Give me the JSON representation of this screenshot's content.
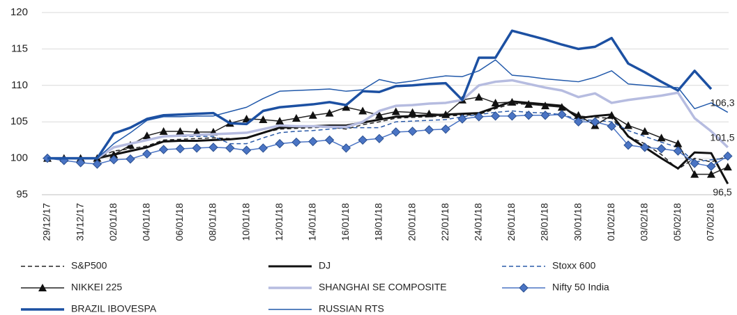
{
  "chart_data": {
    "type": "line",
    "categories": [
      "29/12/17",
      null,
      "31/12/17",
      null,
      "02/01/18",
      null,
      "04/01/18",
      null,
      "06/01/18",
      null,
      "08/01/18",
      null,
      "10/01/18",
      null,
      "12/01/18",
      null,
      "14/01/18",
      null,
      "16/01/18",
      null,
      "18/01/18",
      null,
      "20/01/18",
      null,
      "22/01/18",
      null,
      "24/01/18",
      null,
      "26/01/18",
      null,
      "28/01/18",
      null,
      "30/01/18",
      null,
      "01/02/18",
      null,
      "03/02/18",
      null,
      "05/02/18",
      null,
      "07/02/18",
      null
    ],
    "ylim": [
      95,
      120
    ],
    "yticks": [
      95,
      100,
      105,
      110,
      115,
      120
    ],
    "grid": true,
    "legend": "bottom",
    "series": [
      {
        "name": "S&P500",
        "color": "#222222",
        "width": 1.5,
        "dash": true,
        "values": [
          100,
          100,
          100,
          100,
          101,
          101.3,
          101.7,
          102.5,
          102.6,
          102.7,
          102.8,
          102.7,
          102.7,
          103.5,
          104,
          104.1,
          104.2,
          104.3,
          104,
          104.6,
          105,
          105.5,
          105.6,
          105.7,
          105.8,
          105.9,
          106,
          106.8,
          107.5,
          107.4,
          107.3,
          107,
          105.8,
          105.6,
          105.5,
          103,
          102,
          100.5,
          98.5,
          100,
          99.5,
          100.3
        ]
      },
      {
        "name": "DJ",
        "color": "#111111",
        "width": 3,
        "values": [
          100,
          100,
          100,
          100,
          100.5,
          101,
          101.5,
          102.3,
          102.4,
          102.4,
          102.5,
          102.6,
          102.8,
          103.5,
          104.2,
          104.3,
          104.4,
          104.5,
          104.5,
          104.9,
          105.3,
          105.7,
          105.8,
          105.9,
          106,
          106.1,
          106.2,
          107,
          107.8,
          107.6,
          107.4,
          107.2,
          105.5,
          105.8,
          106,
          103,
          101.5,
          100,
          98.6,
          100.8,
          100.7,
          96.5
        ]
      },
      {
        "name": "Stoxx 600",
        "color": "#2a5aa8",
        "width": 1.5,
        "dash": true,
        "values": [
          100,
          100,
          100,
          100,
          101.5,
          102,
          102.5,
          103,
          103,
          103,
          103,
          102,
          102,
          102.8,
          103.5,
          103.7,
          103.8,
          104,
          104.2,
          104.2,
          104.2,
          105,
          105.1,
          105.2,
          105.3,
          105.7,
          106,
          106.3,
          106.5,
          106.3,
          106.2,
          106,
          105.3,
          105.2,
          105,
          103.8,
          103,
          102.2,
          101.5,
          99.5,
          99.8,
          100
        ]
      },
      {
        "name": "NIKKEI 225",
        "color": "#222222",
        "width": 1.5,
        "marker": "triangle",
        "values": [
          100,
          100,
          100,
          100,
          100.5,
          101.8,
          103.1,
          103.7,
          103.7,
          103.6,
          103.6,
          104.8,
          105.4,
          105.3,
          105.1,
          105.5,
          105.9,
          106.2,
          107,
          106.5,
          105.9,
          106.4,
          106.3,
          106.1,
          106,
          108,
          108.4,
          107.6,
          107.7,
          107.4,
          107.2,
          107,
          105.9,
          104.5,
          105.9,
          104.5,
          103.7,
          102.8,
          102,
          97.8,
          97.8,
          98.8
        ]
      },
      {
        "name": "SHANGHAI SE COMPOSITE",
        "color": "#b6bce0",
        "width": 3.5,
        "values": [
          100,
          100,
          100,
          100,
          101.5,
          102,
          102.5,
          103,
          103.1,
          103.2,
          103.3,
          103.4,
          103.5,
          104,
          104.5,
          104.4,
          104.4,
          104.3,
          104.3,
          105,
          106.5,
          107.2,
          107.3,
          107.5,
          107.6,
          108,
          110,
          110.5,
          110.7,
          110.2,
          109.7,
          109.3,
          108.4,
          108.9,
          107.6,
          108,
          108.3,
          108.6,
          109,
          105.5,
          103.7,
          101.5
        ]
      },
      {
        "name": "Nifty 50 India",
        "color": "#4a74c4",
        "width": 1.5,
        "marker": "diamond",
        "values": [
          100,
          99.7,
          99.4,
          99.2,
          99.8,
          99.9,
          100.6,
          101.2,
          101.3,
          101.4,
          101.5,
          101.4,
          101.1,
          101.4,
          102,
          102.2,
          102.3,
          102.5,
          101.4,
          102.5,
          102.7,
          103.6,
          103.7,
          103.9,
          104,
          105.4,
          105.7,
          105.8,
          105.8,
          105.9,
          105.9,
          106,
          105,
          105,
          104.4,
          101.8,
          101.5,
          101.3,
          101,
          99.3,
          98.9,
          100.3
        ]
      },
      {
        "name": "BRAZIL IBOVESPA",
        "color": "#1c50a2",
        "width": 3.5,
        "values": [
          100,
          100,
          100,
          100,
          103.4,
          104.2,
          105.4,
          105.9,
          106,
          106.1,
          106.2,
          104.8,
          104.7,
          106.5,
          107,
          107.2,
          107.4,
          107.7,
          107.3,
          109.2,
          109.1,
          109.9,
          110,
          110.2,
          110.3,
          108,
          113.8,
          113.8,
          117.5,
          116.9,
          116.3,
          115.6,
          115,
          115.3,
          116.5,
          113,
          111.8,
          110.5,
          109.3,
          112,
          109.5,
          null
        ]
      },
      {
        "name": "RUSSIAN RTS",
        "color": "#2058aa",
        "width": 1.5,
        "values": [
          100,
          100,
          100,
          100,
          102,
          103.5,
          105.2,
          105.7,
          105.7,
          105.8,
          105.8,
          106.4,
          107,
          108.2,
          109.2,
          109.3,
          109.4,
          109.5,
          109.2,
          109.4,
          110.8,
          110.3,
          110.6,
          111,
          111.3,
          111.2,
          112,
          113.5,
          111.4,
          111.2,
          110.9,
          110.7,
          110.5,
          111.1,
          112,
          110.2,
          110,
          109.8,
          109.7,
          106.8,
          107.6,
          106.3
        ]
      }
    ],
    "annotations": [
      {
        "label": "106,3",
        "value": 106.3
      },
      {
        "label": "101,5",
        "value": 101.5
      },
      {
        "label": "96,5",
        "value": 96.5
      }
    ]
  }
}
